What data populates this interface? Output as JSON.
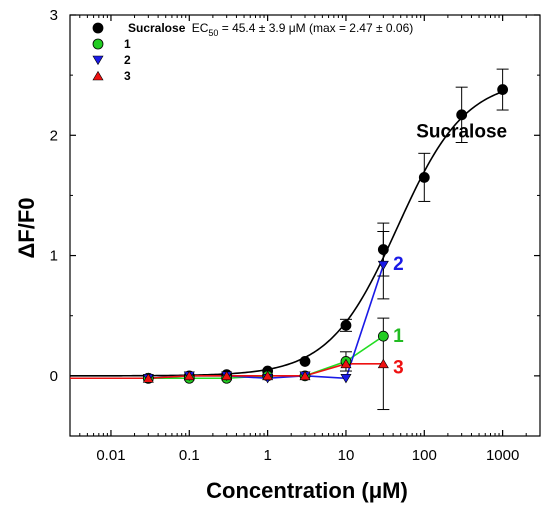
{
  "chart_data": {
    "type": "scatter",
    "xlabel": "Concentration (μM)",
    "ylabel": "ΔF/F0",
    "xscale": "log",
    "xlim": [
      0.003,
      3000
    ],
    "ylim": [
      -0.5,
      3
    ],
    "x_ticks": [
      0.01,
      0.1,
      1,
      10,
      100,
      1000
    ],
    "x_tick_labels": [
      "0.01",
      "0.1",
      "1",
      "10",
      "100",
      "1000"
    ],
    "y_ticks": [
      0,
      1,
      2,
      3
    ],
    "y_tick_labels": [
      "0",
      "1",
      "2",
      "3"
    ],
    "grid": false,
    "legend_position": "top-left",
    "legend_header": {
      "name": "Sucralose",
      "ec_prefix": "EC",
      "ec_sub": "50",
      "ec_value": " = 45.4 ± 3.9 μM (max = 2.47 ± 0.06)"
    },
    "series": [
      {
        "name": "Sucralose",
        "legend": "",
        "marker": "circle",
        "color": "#000000",
        "fit": {
          "model": "hill",
          "bottom": 0,
          "top": 2.47,
          "ec50": 45.4,
          "hill": 1.0,
          "x_from": 0.003,
          "x_to": 1000
        },
        "points": [
          {
            "x": 0.03,
            "y": -0.02,
            "err": 0.03
          },
          {
            "x": 0.1,
            "y": 0.0,
            "err": 0.0
          },
          {
            "x": 0.3,
            "y": 0.01,
            "err": 0.0
          },
          {
            "x": 1,
            "y": 0.04,
            "err": 0.0
          },
          {
            "x": 3,
            "y": 0.12,
            "err": 0.03
          },
          {
            "x": 10,
            "y": 0.42,
            "err": 0.05
          },
          {
            "x": 30,
            "y": 1.05,
            "err": 0.22
          },
          {
            "x": 100,
            "y": 1.65,
            "err": 0.2
          },
          {
            "x": 300,
            "y": 2.17,
            "err": 0.23
          },
          {
            "x": 1000,
            "y": 2.38,
            "err": 0.17
          }
        ]
      },
      {
        "name": "1",
        "legend": "1",
        "marker": "circle",
        "color": "#22cc22",
        "line_color": "#22dd22",
        "points": [
          {
            "x": 0.03,
            "y": -0.02
          },
          {
            "x": 0.1,
            "y": -0.02
          },
          {
            "x": 0.3,
            "y": -0.02
          },
          {
            "x": 1,
            "y": 0.0
          },
          {
            "x": 3,
            "y": 0.0
          },
          {
            "x": 10,
            "y": 0.12,
            "err": 0.08
          },
          {
            "x": 30,
            "y": 0.33
          }
        ]
      },
      {
        "name": "2",
        "legend": "2",
        "marker": "triangle-down",
        "color": "#1a1ae6",
        "line_color": "#1a1ae6",
        "points": [
          {
            "x": 0.03,
            "y": -0.02
          },
          {
            "x": 0.1,
            "y": 0.0
          },
          {
            "x": 0.3,
            "y": 0.0
          },
          {
            "x": 1,
            "y": -0.02
          },
          {
            "x": 3,
            "y": 0.0
          },
          {
            "x": 10,
            "y": -0.02
          },
          {
            "x": 30,
            "y": 0.92,
            "err": 0.28
          }
        ]
      },
      {
        "name": "3",
        "legend": "3",
        "marker": "triangle-up",
        "color": "#ee1111",
        "line_color": "#ee1111",
        "points": [
          {
            "x": 0.03,
            "y": -0.02
          },
          {
            "x": 0.1,
            "y": 0.0
          },
          {
            "x": 0.3,
            "y": 0.0
          },
          {
            "x": 1,
            "y": 0.0
          },
          {
            "x": 3,
            "y": 0.0
          },
          {
            "x": 10,
            "y": 0.1
          },
          {
            "x": 30,
            "y": 0.1,
            "err": 0.38
          }
        ]
      }
    ],
    "annotations": [
      {
        "text": "Sucralose",
        "x": 300,
        "y": 1.98,
        "color": "#000000",
        "size": 19
      },
      {
        "text": "2",
        "x": 40,
        "y": 0.88,
        "color": "#1a1ae6",
        "size": 19
      },
      {
        "text": "1",
        "x": 40,
        "y": 0.28,
        "color": "#22bb22",
        "size": 19
      },
      {
        "text": "3",
        "x": 40,
        "y": 0.02,
        "color": "#ee1111",
        "size": 19
      }
    ]
  }
}
